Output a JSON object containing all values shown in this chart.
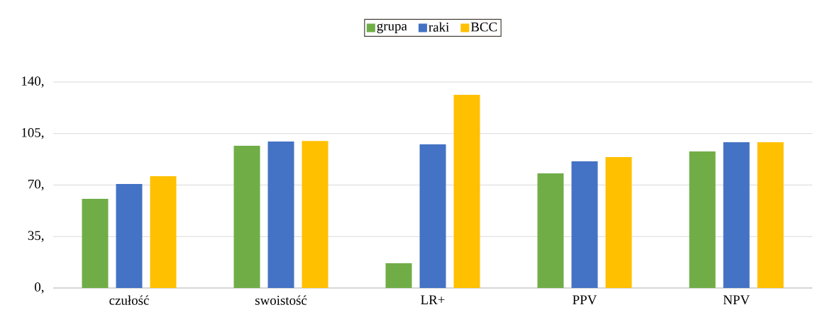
{
  "chart_data": {
    "type": "bar",
    "categories": [
      "czułość",
      "swoistość",
      "LR+",
      "PPV",
      "NPV"
    ],
    "series": [
      {
        "name": "grupa",
        "color": "#70ad47",
        "values": [
          60.6,
          96.7,
          16.8,
          77.9,
          92.8
        ]
      },
      {
        "name": "raki",
        "color": "#4472c4",
        "values": [
          70.7,
          99.6,
          97.6,
          86.1,
          99.1
        ]
      },
      {
        "name": "BCC",
        "color": "#ffc000",
        "values": [
          76.0,
          100.0,
          131.3,
          89.0,
          99.1
        ]
      }
    ],
    "ylim": [
      0,
      140
    ],
    "yticks": [
      {
        "value": 0,
        "label": "0,"
      },
      {
        "value": 35,
        "label": "35,"
      },
      {
        "value": 70,
        "label": "70,"
      },
      {
        "value": 105,
        "label": "105,"
      },
      {
        "value": 140,
        "label": "140,"
      }
    ],
    "grid": "y",
    "legend": "top"
  }
}
